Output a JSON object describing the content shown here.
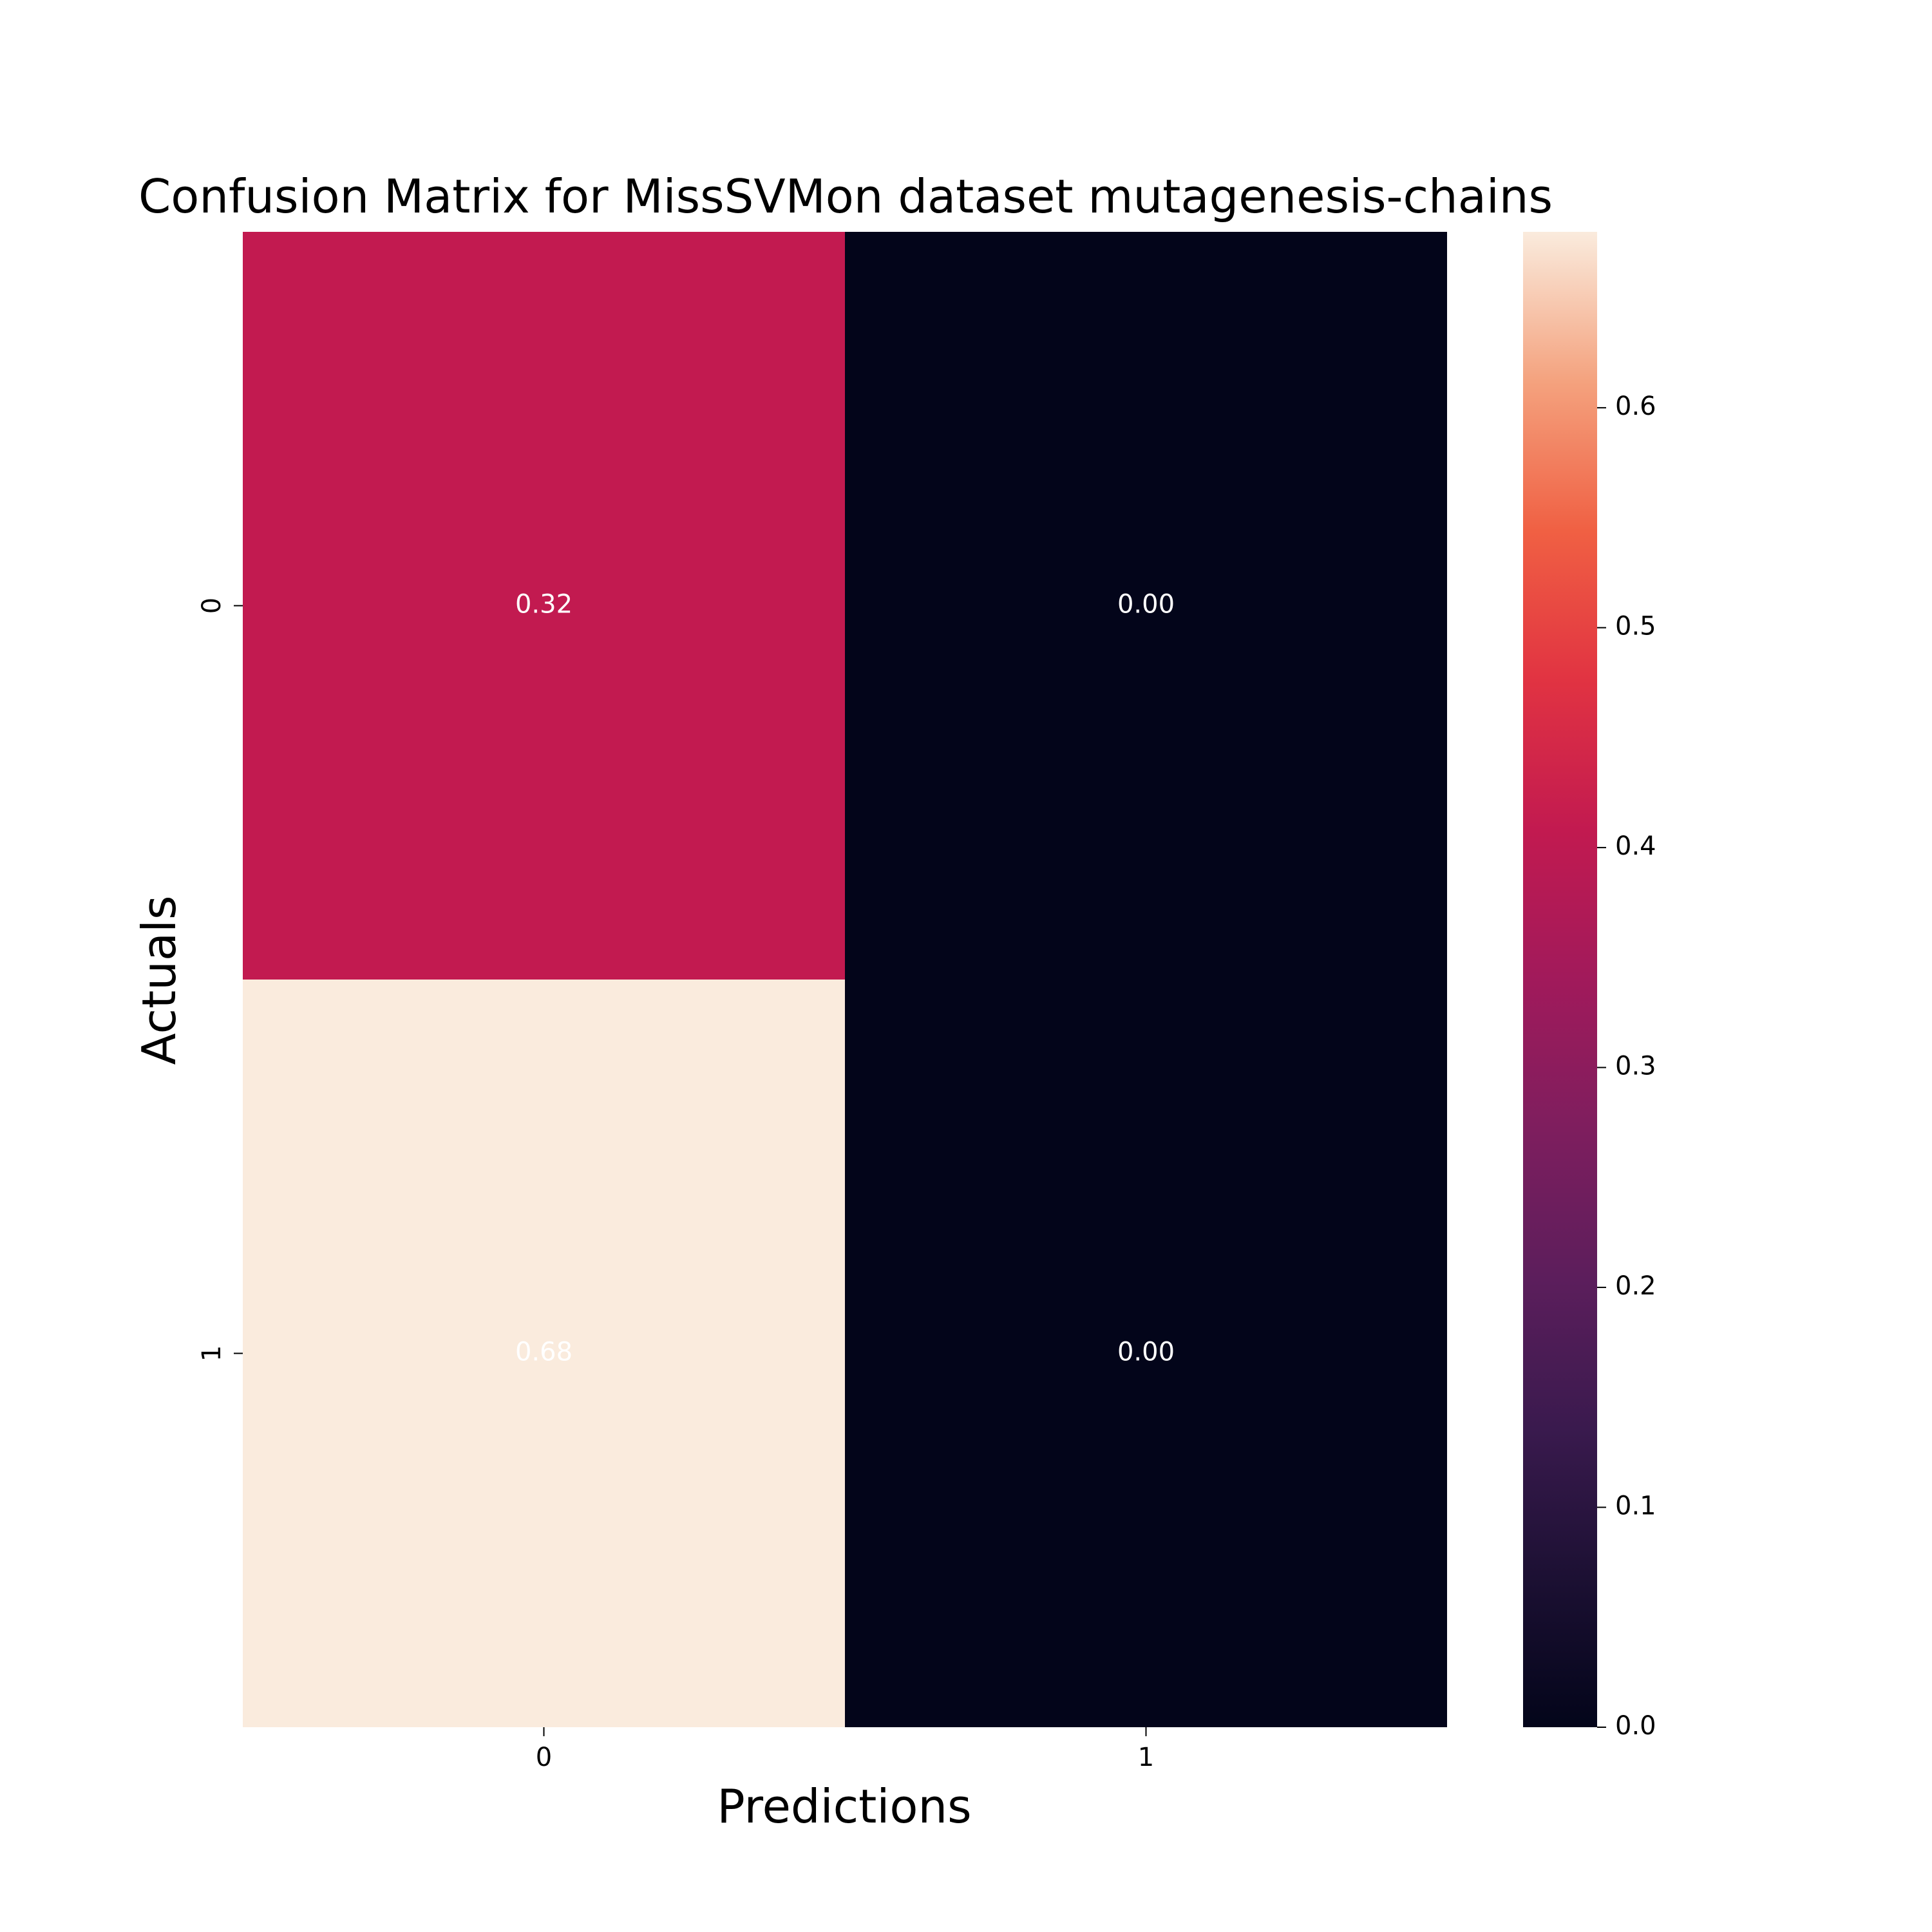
{
  "chart_data": {
    "type": "heatmap",
    "title": "Confusion Matrix for MissSVMon dataset mutagenesis-chains",
    "xlabel": "Predictions",
    "ylabel": "Actuals",
    "x_categories": [
      "0",
      "1"
    ],
    "y_categories": [
      "0",
      "1"
    ],
    "values": [
      [
        0.32,
        0.0
      ],
      [
        0.68,
        0.0
      ]
    ],
    "annotations": [
      [
        "0.32",
        "0.00"
      ],
      [
        "0.68",
        "0.00"
      ]
    ],
    "colorbar": {
      "min": 0.0,
      "max": 0.68,
      "ticks": [
        "0.0",
        "0.1",
        "0.2",
        "0.3",
        "0.4",
        "0.5",
        "0.6"
      ],
      "colormap": "rocket"
    },
    "colors": {
      "cell_0_0": "#c21a50",
      "cell_0_1": "#03051a",
      "cell_1_0": "#faebdd",
      "cell_1_1": "#03051a"
    },
    "grid": false,
    "legend": "colorbar-right"
  }
}
